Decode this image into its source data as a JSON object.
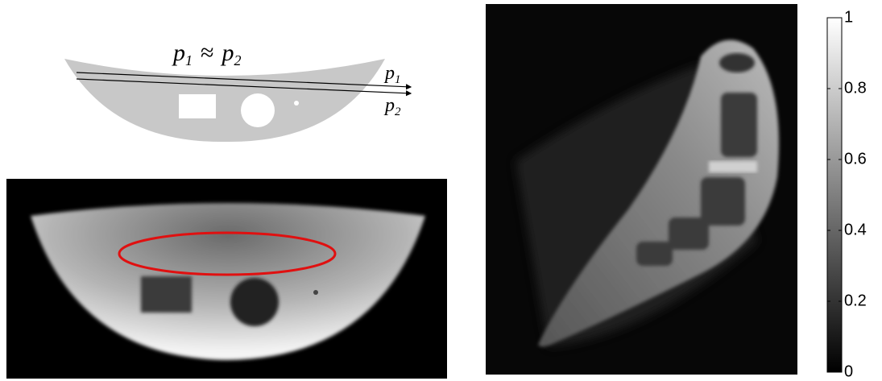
{
  "diagram": {
    "equation": {
      "left": "p",
      "left_sub": "1",
      "relation": "≈",
      "right": "p",
      "right_sub": "2"
    },
    "ray_labels": [
      {
        "symbol": "p",
        "sub": "1"
      },
      {
        "symbol": "p",
        "sub": "2"
      }
    ]
  },
  "colorbar": {
    "lim": [
      0,
      1
    ],
    "ticks": [
      0,
      0.2,
      0.4,
      0.6,
      0.8,
      1
    ]
  }
}
